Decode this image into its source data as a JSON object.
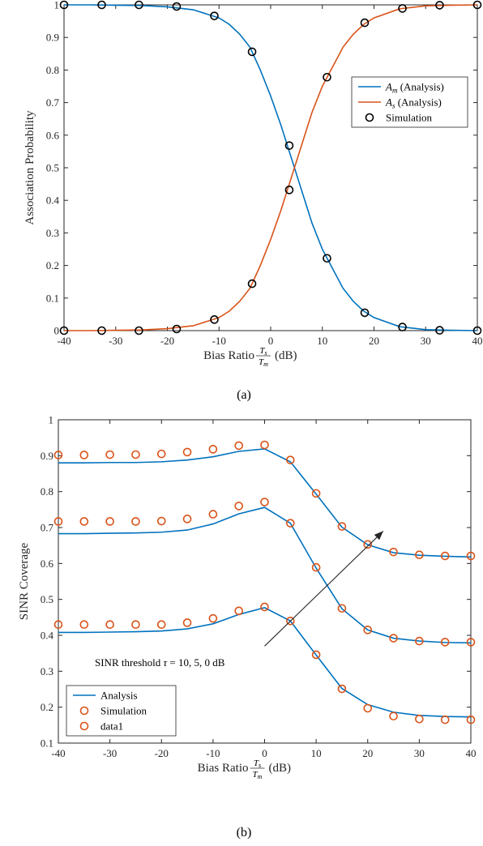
{
  "colors": {
    "blue": "#0072BD",
    "orange": "#D95319",
    "sim_a": "#000000",
    "sim_b": "#D95319"
  },
  "chart_data": [
    {
      "type": "line",
      "caption": "(a)",
      "xlabel": "Bias Ratio",
      "xlabel_frac_num": "T",
      "xlabel_frac_num_sub": "s",
      "xlabel_frac_den": "T",
      "xlabel_frac_den_sub": "m",
      "xlabel_unit": "(dB)",
      "ylabel": "Association Probability",
      "xlim": [
        -40,
        40
      ],
      "ylim": [
        0,
        1
      ],
      "xticks": [
        -40,
        -30,
        -20,
        -10,
        0,
        10,
        20,
        30,
        40
      ],
      "xtick_labels": [
        "-40",
        "-30",
        "-20",
        "-10",
        "0",
        "10",
        "20",
        "30",
        "40"
      ],
      "yticks": [
        0,
        0.1,
        0.2,
        0.3,
        0.4,
        0.5,
        0.6,
        0.7,
        0.8,
        0.9,
        1
      ],
      "ytick_labels": [
        "0",
        "0.1",
        "0.2",
        "0.3",
        "0.4",
        "0.5",
        "0.6",
        "0.7",
        "0.8",
        "0.9",
        "1"
      ],
      "legend": {
        "placement": "right-middle",
        "entries": [
          {
            "sym": "A",
            "sub": "m",
            "text": "(Analysis)"
          },
          {
            "sym": "A",
            "sub": "s",
            "text": "(Analysis)"
          },
          {
            "text": "Simulation"
          }
        ]
      },
      "series": [
        {
          "kind": "line",
          "color": "#0072BD",
          "x": [
            -40,
            -35,
            -30,
            -25,
            -20,
            -15,
            -10,
            -8,
            -6,
            -4,
            -2,
            0,
            2,
            4,
            6,
            8,
            10,
            12,
            14,
            16,
            18,
            20,
            25,
            30,
            35,
            40
          ],
          "y": [
            1,
            1,
            0.999,
            0.998,
            0.994,
            0.985,
            0.96,
            0.94,
            0.91,
            0.87,
            0.8,
            0.72,
            0.63,
            0.53,
            0.43,
            0.33,
            0.25,
            0.19,
            0.13,
            0.09,
            0.06,
            0.04,
            0.012,
            0.003,
            0.001,
            0
          ]
        },
        {
          "kind": "line",
          "color": "#D95319",
          "x": [
            -40,
            -35,
            -30,
            -25,
            -20,
            -15,
            -10,
            -8,
            -6,
            -4,
            -2,
            0,
            2,
            4,
            6,
            8,
            10,
            12,
            14,
            16,
            18,
            20,
            25,
            30,
            35,
            40
          ],
          "y": [
            0,
            0,
            0.001,
            0.002,
            0.006,
            0.015,
            0.04,
            0.06,
            0.09,
            0.13,
            0.2,
            0.28,
            0.37,
            0.47,
            0.57,
            0.67,
            0.75,
            0.81,
            0.87,
            0.91,
            0.94,
            0.96,
            0.988,
            0.997,
            0.999,
            1
          ]
        },
        {
          "kind": "markers",
          "color": "#000000",
          "x": [
            -40,
            -32.7,
            -25.5,
            -18.2,
            -10.9,
            -3.6,
            3.6,
            10.9,
            18.2,
            25.5,
            32.7,
            40
          ],
          "y": [
            1,
            1,
            1,
            0.995,
            0.966,
            0.856,
            0.568,
            0.222,
            0.055,
            0.011,
            0.001,
            0
          ]
        },
        {
          "kind": "markers",
          "color": "#000000",
          "x": [
            -40,
            -32.7,
            -25.5,
            -18.2,
            -10.9,
            -3.6,
            3.6,
            10.9,
            18.2,
            25.5,
            32.7,
            40
          ],
          "y": [
            0,
            0,
            0,
            0.005,
            0.034,
            0.144,
            0.432,
            0.778,
            0.945,
            0.989,
            0.999,
            1
          ]
        }
      ]
    },
    {
      "type": "line",
      "caption": "(b)",
      "xlabel": "Bias Ratio",
      "xlabel_frac_num": "T",
      "xlabel_frac_num_sub": "s",
      "xlabel_frac_den": "T",
      "xlabel_frac_den_sub": "m",
      "xlabel_unit": "(dB)",
      "ylabel": "SINR Coverage",
      "xlim": [
        -40,
        40
      ],
      "ylim": [
        0.1,
        1
      ],
      "xticks": [
        -40,
        -30,
        -20,
        -10,
        0,
        10,
        20,
        30,
        40
      ],
      "xtick_labels": [
        "-40",
        "-30",
        "-20",
        "-10",
        "0",
        "10",
        "20",
        "30",
        "40"
      ],
      "yticks": [
        0.1,
        0.2,
        0.3,
        0.4,
        0.5,
        0.6,
        0.7,
        0.8,
        0.9,
        1
      ],
      "ytick_labels": [
        "0.1",
        "0.2",
        "0.3",
        "0.4",
        "0.5",
        "0.6",
        "0.7",
        "0.8",
        "0.9",
        "1"
      ],
      "annotation": {
        "text": "SINR threshold",
        "sym": "τ",
        "rest": "= 10, 5, 0 dB",
        "arrow_from": [
          0,
          0.37
        ],
        "arrow_to": [
          23,
          0.69
        ]
      },
      "legend": {
        "placement": "bottom-left",
        "entries": [
          {
            "text": "Analysis"
          },
          {
            "text": "Simulation"
          },
          {
            "text": "data1"
          }
        ]
      },
      "series": [
        {
          "kind": "line",
          "color": "#0072BD",
          "x": [
            -40,
            -35,
            -30,
            -25,
            -20,
            -15,
            -10,
            -5,
            0,
            5,
            10,
            15,
            20,
            25,
            30,
            35,
            40
          ],
          "y": [
            0.88,
            0.88,
            0.881,
            0.881,
            0.883,
            0.888,
            0.897,
            0.912,
            0.919,
            0.883,
            0.793,
            0.701,
            0.652,
            0.63,
            0.623,
            0.62,
            0.618
          ]
        },
        {
          "kind": "line",
          "color": "#0072BD",
          "x": [
            -40,
            -35,
            -30,
            -25,
            -20,
            -15,
            -10,
            -5,
            0,
            5,
            10,
            15,
            20,
            25,
            30,
            35,
            40
          ],
          "y": [
            0.683,
            0.683,
            0.684,
            0.685,
            0.687,
            0.693,
            0.71,
            0.738,
            0.756,
            0.712,
            0.587,
            0.474,
            0.415,
            0.392,
            0.384,
            0.38,
            0.379
          ]
        },
        {
          "kind": "line",
          "color": "#0072BD",
          "x": [
            -40,
            -35,
            -30,
            -25,
            -20,
            -15,
            -10,
            -5,
            0,
            5,
            10,
            15,
            20,
            25,
            30,
            35,
            40
          ],
          "y": [
            0.408,
            0.408,
            0.409,
            0.41,
            0.412,
            0.418,
            0.432,
            0.458,
            0.477,
            0.44,
            0.345,
            0.252,
            0.207,
            0.186,
            0.177,
            0.174,
            0.173
          ]
        },
        {
          "kind": "markers",
          "color": "#D95319",
          "x": [
            -40,
            -35,
            -30,
            -25,
            -20,
            -15,
            -10,
            -5,
            0,
            5,
            10,
            15,
            20,
            25,
            30,
            35,
            40
          ],
          "y": [
            0.902,
            0.902,
            0.903,
            0.903,
            0.905,
            0.91,
            0.918,
            0.928,
            0.93,
            0.888,
            0.795,
            0.703,
            0.653,
            0.632,
            0.624,
            0.621,
            0.621
          ]
        },
        {
          "kind": "markers",
          "color": "#D95319",
          "x": [
            -40,
            -35,
            -30,
            -25,
            -20,
            -15,
            -10,
            -5,
            0,
            5,
            10,
            15,
            20,
            25,
            30,
            35,
            40
          ],
          "y": [
            0.717,
            0.717,
            0.717,
            0.717,
            0.718,
            0.724,
            0.737,
            0.76,
            0.771,
            0.712,
            0.589,
            0.475,
            0.415,
            0.392,
            0.384,
            0.381,
            0.381
          ]
        },
        {
          "kind": "markers",
          "color": "#D95319",
          "x": [
            -40,
            -35,
            -30,
            -25,
            -20,
            -15,
            -10,
            -5,
            0,
            5,
            10,
            15,
            20,
            25,
            30,
            35,
            40
          ],
          "y": [
            0.43,
            0.43,
            0.43,
            0.43,
            0.43,
            0.435,
            0.447,
            0.468,
            0.479,
            0.44,
            0.346,
            0.251,
            0.197,
            0.175,
            0.167,
            0.165,
            0.165
          ]
        }
      ]
    }
  ]
}
